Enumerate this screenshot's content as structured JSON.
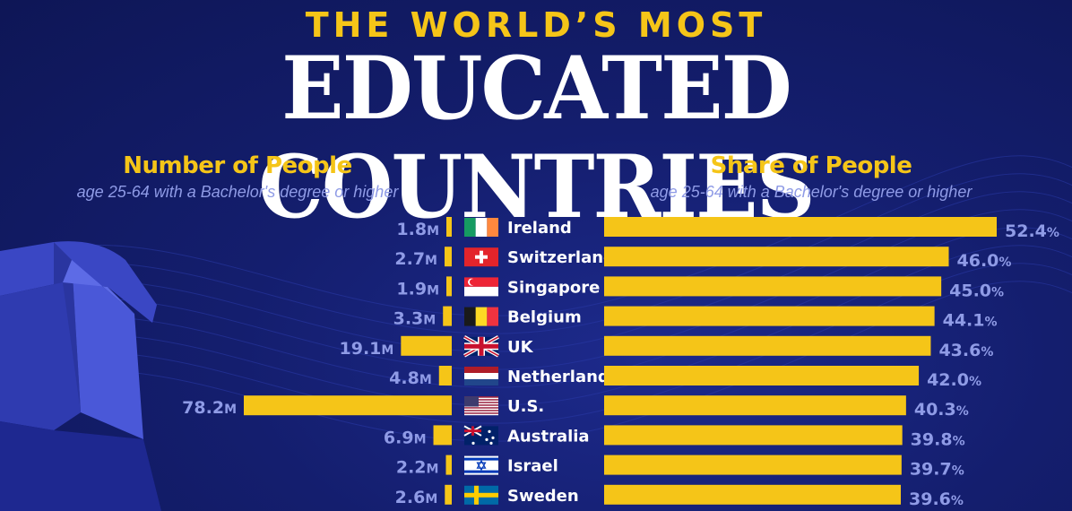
{
  "header": {
    "kicker": "THE WORLD’S MOST",
    "title": "EDUCATED COUNTRIES"
  },
  "left_panel": {
    "heading": "Number of People",
    "subheading": "age 25-64 with a Bachelor's degree or higher"
  },
  "right_panel": {
    "heading": "Share of People",
    "subheading": "age 25-64 with a Bachelor's degree or higher"
  },
  "colors": {
    "bar": "#f5c518",
    "value_text": "#8f9be6",
    "label_text": "#ffffff",
    "background": "#141e6e"
  },
  "chart_data": [
    {
      "type": "bar",
      "orientation": "horizontal",
      "direction": "right-to-left",
      "title": "Number of People",
      "subtitle": "age 25-64 with a Bachelor's degree or higher",
      "categories": [
        "Ireland",
        "Switzerland",
        "Singapore",
        "Belgium",
        "UK",
        "Netherlands",
        "U.S.",
        "Australia",
        "Israel",
        "Sweden"
      ],
      "values": [
        1.8,
        2.7,
        1.9,
        3.3,
        19.1,
        4.8,
        78.2,
        6.9,
        2.2,
        2.6
      ],
      "value_labels": [
        "1.8",
        "2.7",
        "1.9",
        "3.3",
        "19.1",
        "4.8",
        "78.2",
        "6.9",
        "2.2",
        "2.6"
      ],
      "unit_suffix": "M",
      "xlim": [
        0,
        78.2
      ]
    },
    {
      "type": "bar",
      "orientation": "horizontal",
      "title": "Share of People",
      "subtitle": "age 25-64 with a Bachelor's degree or higher",
      "categories": [
        "Ireland",
        "Switzerland",
        "Singapore",
        "Belgium",
        "UK",
        "Netherlands",
        "U.S.",
        "Australia",
        "Israel",
        "Sweden"
      ],
      "values": [
        52.4,
        46.0,
        45.0,
        44.1,
        43.6,
        42.0,
        40.3,
        39.8,
        39.7,
        39.6
      ],
      "value_labels": [
        "52.4",
        "46.0",
        "45.0",
        "44.1",
        "43.6",
        "42.0",
        "40.3",
        "39.8",
        "39.7",
        "39.6"
      ],
      "unit_suffix": "%",
      "xlim": [
        0,
        52.4
      ]
    }
  ],
  "flags": [
    "ireland-flag-icon",
    "switzerland-flag-icon",
    "singapore-flag-icon",
    "belgium-flag-icon",
    "uk-flag-icon",
    "netherlands-flag-icon",
    "us-flag-icon",
    "australia-flag-icon",
    "israel-flag-icon",
    "sweden-flag-icon"
  ]
}
